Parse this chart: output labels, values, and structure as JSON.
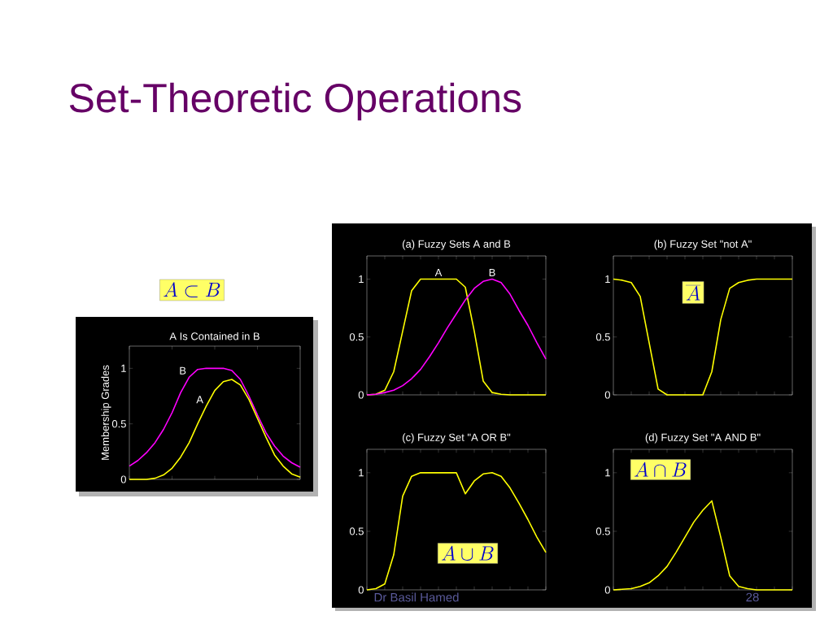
{
  "chart_data": [
    {
      "type": "line",
      "title": "A Is Contained in B",
      "ylabel": "Membership Grades",
      "marker": "none",
      "tick_labels": "y",
      "categories": [
        null,
        null,
        null,
        null,
        null,
        null,
        null,
        null,
        null,
        null,
        null,
        null,
        null,
        null,
        null,
        null,
        null,
        null,
        null,
        null,
        null
      ],
      "ylim": [
        0,
        1.2
      ],
      "yticks": [
        0,
        0.5,
        1
      ],
      "series": [
        {
          "name": "B",
          "color": "#ff00ff",
          "values": [
            0.12,
            0.17,
            0.24,
            0.33,
            0.45,
            0.6,
            0.78,
            0.92,
            0.99,
            1,
            1,
            1,
            0.98,
            0.9,
            0.75,
            0.58,
            0.42,
            0.3,
            0.21,
            0.15,
            0.11
          ]
        },
        {
          "name": "A",
          "color": "#ffff00",
          "values": [
            0,
            0,
            0,
            0.01,
            0.04,
            0.1,
            0.2,
            0.33,
            0.5,
            0.66,
            0.8,
            0.88,
            0.9,
            0.85,
            0.72,
            0.55,
            0.38,
            0.22,
            0.12,
            0.05,
            0.02
          ]
        }
      ],
      "annotations": [
        "Set-Theoretic Operations",
        "A \\subset B"
      ]
    },
    {
      "type": "line",
      "title": "(a) Fuzzy Sets A and B",
      "marker": "none",
      "tick_labels": "y",
      "categories": [
        null,
        null,
        null,
        null,
        null,
        null,
        null,
        null,
        null,
        null,
        null,
        null,
        null,
        null,
        null,
        null,
        null,
        null,
        null,
        null,
        null
      ],
      "ylim": [
        0,
        1.2
      ],
      "yticks": [
        0,
        0.5,
        1
      ],
      "series": [
        {
          "name": "A",
          "color": "#ffff00",
          "values": [
            0,
            0.005,
            0.04,
            0.2,
            0.55,
            0.9,
            1,
            1,
            1,
            1,
            1,
            0.93,
            0.55,
            0.12,
            0.02,
            0.005,
            0,
            0,
            0,
            0,
            0
          ]
        },
        {
          "name": "B",
          "color": "#ff00ff",
          "values": [
            0,
            0.005,
            0.02,
            0.04,
            0.08,
            0.14,
            0.22,
            0.33,
            0.45,
            0.58,
            0.7,
            0.82,
            0.92,
            0.98,
            1,
            0.97,
            0.87,
            0.73,
            0.6,
            0.45,
            0.31
          ]
        }
      ]
    },
    {
      "type": "line",
      "title": "(b) Fuzzy Set \"not A\"",
      "marker": "none",
      "tick_labels": "y",
      "categories": [
        null,
        null,
        null,
        null,
        null,
        null,
        null,
        null,
        null,
        null,
        null,
        null,
        null,
        null,
        null,
        null,
        null,
        null,
        null,
        null,
        null
      ],
      "ylim": [
        0,
        1.2
      ],
      "yticks": [
        0,
        0.5,
        1
      ],
      "series": [
        {
          "color": "#ffff00",
          "values": [
            1,
            0.99,
            0.97,
            0.85,
            0.45,
            0.05,
            0,
            0,
            0,
            0,
            0,
            0.2,
            0.65,
            0.92,
            0.97,
            0.99,
            1,
            1,
            1,
            1,
            1
          ]
        }
      ],
      "annotations": [
        "\\overline{A}"
      ]
    },
    {
      "type": "line",
      "title": "(c) Fuzzy Set \"A OR B\"",
      "marker": "none",
      "tick_labels": "y",
      "categories": [
        null,
        null,
        null,
        null,
        null,
        null,
        null,
        null,
        null,
        null,
        null,
        null,
        null,
        null,
        null,
        null,
        null,
        null,
        null,
        null,
        null
      ],
      "ylim": [
        0,
        1.2
      ],
      "yticks": [
        0,
        0.5,
        1
      ],
      "series": [
        {
          "color": "#ffff00",
          "values": [
            0,
            0.01,
            0.05,
            0.3,
            0.8,
            0.97,
            1,
            1,
            1,
            1,
            1,
            0.82,
            0.93,
            0.99,
            1,
            0.97,
            0.87,
            0.74,
            0.6,
            0.45,
            0.32
          ]
        }
      ],
      "annotations": [
        "A \\cup B",
        "Dr Basil Hamed"
      ]
    },
    {
      "type": "line",
      "title": "(d) Fuzzy Set \"A AND B\"",
      "marker": "none",
      "tick_labels": "y",
      "categories": [
        null,
        null,
        null,
        null,
        null,
        null,
        null,
        null,
        null,
        null,
        null,
        null,
        null,
        null,
        null,
        null,
        null,
        null,
        null,
        null,
        null
      ],
      "ylim": [
        0,
        1.2
      ],
      "yticks": [
        0,
        0.5,
        1
      ],
      "series": [
        {
          "color": "#ffff00",
          "values": [
            0,
            0.005,
            0.01,
            0.03,
            0.06,
            0.12,
            0.2,
            0.32,
            0.45,
            0.58,
            0.68,
            0.76,
            0.45,
            0.12,
            0.03,
            0.01,
            0,
            0,
            0,
            0,
            0
          ]
        }
      ],
      "annotations": [
        "A \\cap B",
        "28"
      ]
    }
  ]
}
